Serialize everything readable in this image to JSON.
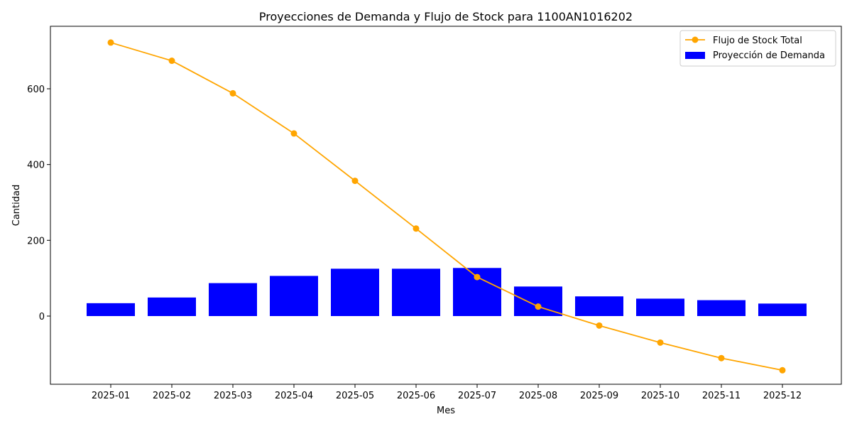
{
  "chart_data": {
    "type": "bar",
    "title": "Proyecciones de Demanda y Flujo de Stock para 1100AN1016202",
    "xlabel": "Mes",
    "ylabel": "Cantidad",
    "categories": [
      "2025-01",
      "2025-02",
      "2025-03",
      "2025-04",
      "2025-05",
      "2025-06",
      "2025-07",
      "2025-08",
      "2025-09",
      "2025-10",
      "2025-11",
      "2025-12"
    ],
    "ylim": [
      -180,
      765
    ],
    "yticks": [
      0,
      200,
      400,
      600
    ],
    "grid": false,
    "legend_position": "top-right",
    "series": [
      {
        "name": "Proyección de Demanda",
        "type": "bar",
        "color": "#0000ff",
        "values": [
          34,
          49,
          87,
          106,
          125,
          125,
          127,
          78,
          52,
          46,
          42,
          33
        ]
      },
      {
        "name": "Flujo de Stock Total",
        "type": "line",
        "color": "#ffa500",
        "marker": "circle",
        "values": [
          722,
          674,
          588,
          482,
          357,
          231,
          103,
          25,
          -25,
          -70,
          -111,
          -143
        ]
      }
    ]
  }
}
